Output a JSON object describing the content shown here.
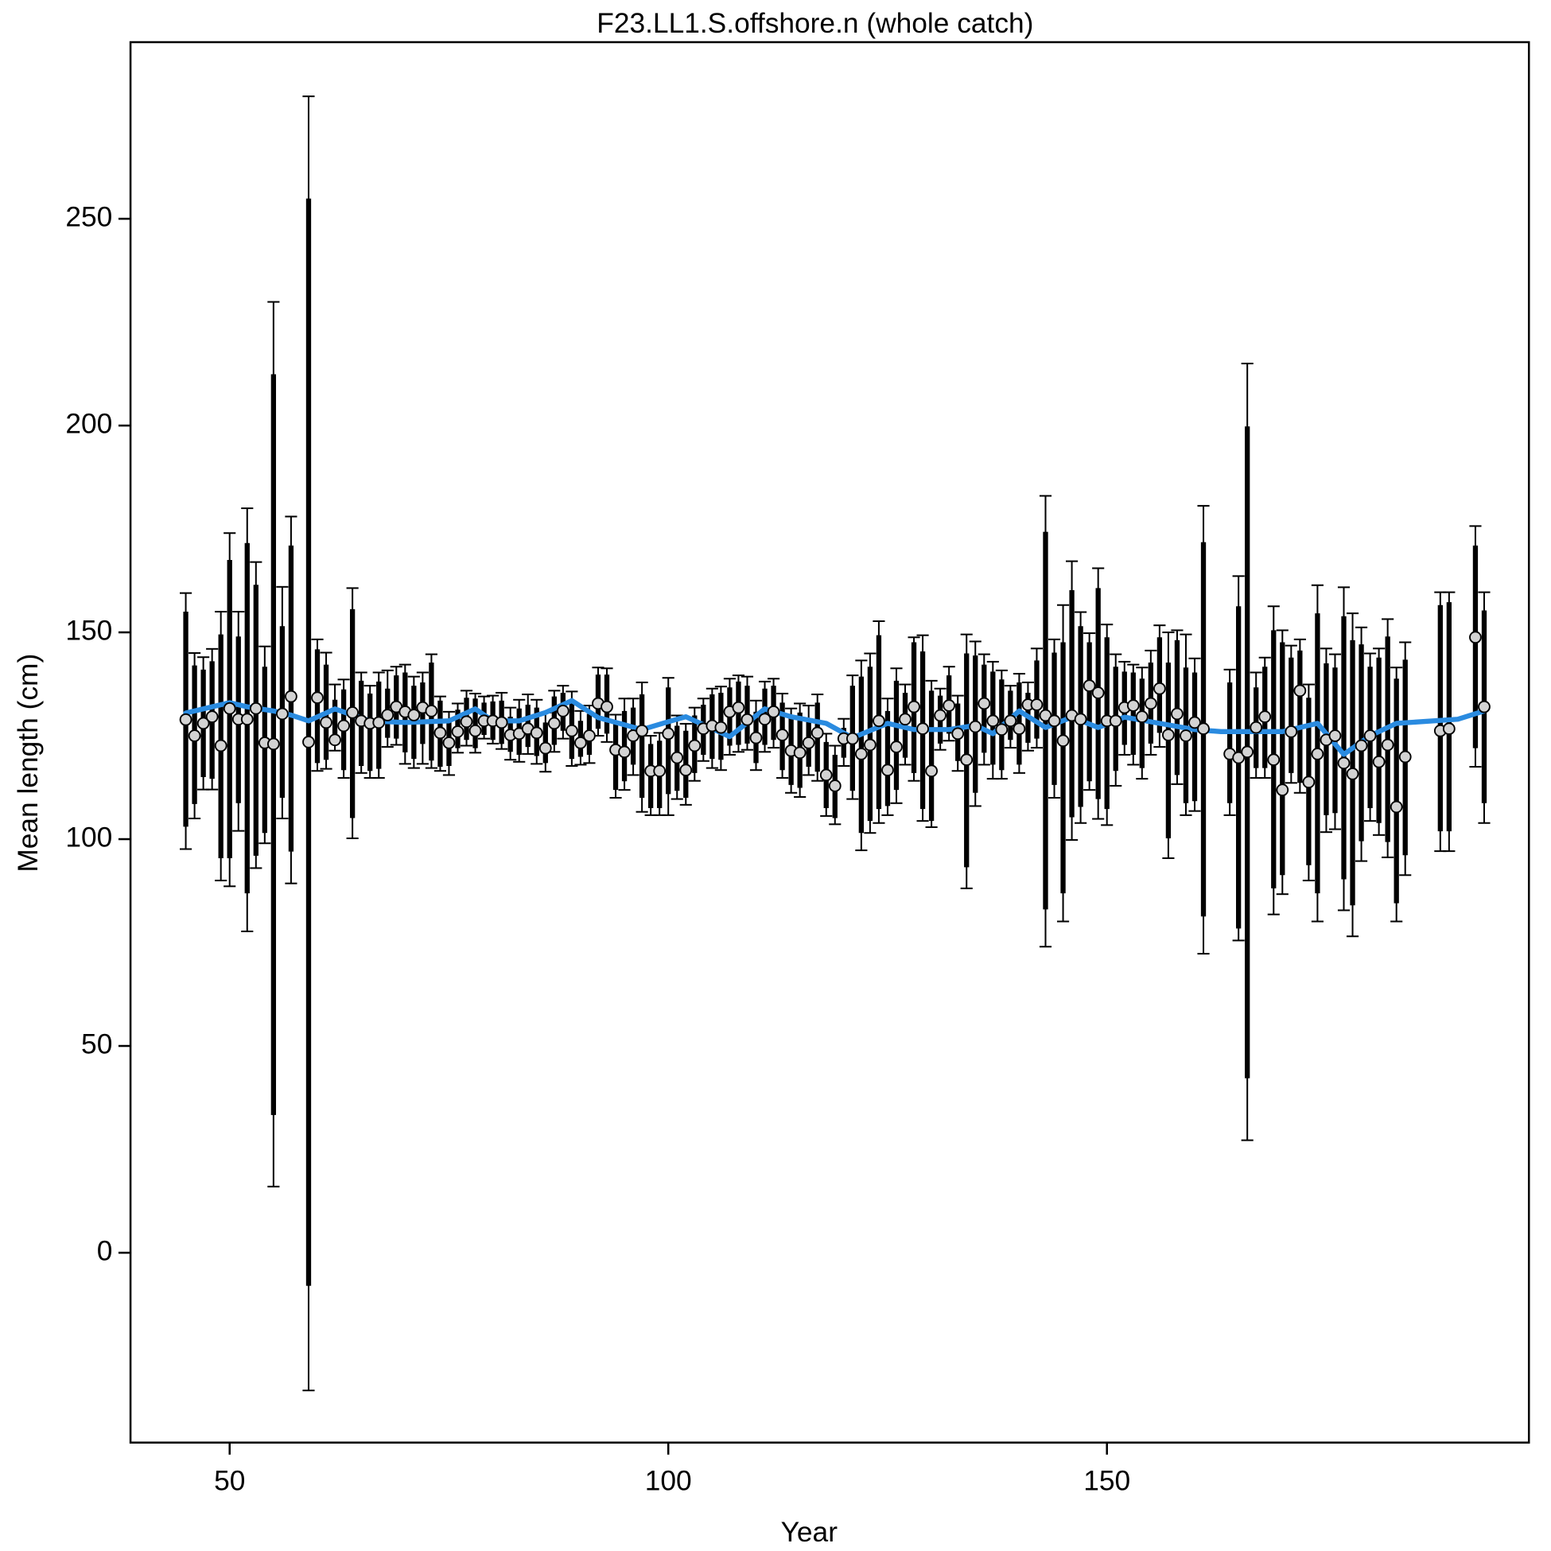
{
  "chart_data": {
    "type": "errorbar",
    "title": "F23.LL1.S.offshore.n (whole catch)",
    "xlabel": "Year",
    "ylabel": "Mean length (cm)",
    "xlim": [
      38.7,
      198.1
    ],
    "ylim": [
      -45.9,
      292.7
    ],
    "xticks": [
      50,
      100,
      150
    ],
    "yticks": [
      0,
      50,
      100,
      150,
      200,
      250
    ],
    "points": {
      "color": "#d3d3d3",
      "bar_color": "#000000",
      "x": [
        45,
        46,
        47,
        48,
        49,
        50,
        51,
        52,
        53,
        54,
        55,
        56,
        57,
        59,
        60,
        61,
        62,
        63,
        64,
        65,
        66,
        67,
        68,
        69,
        70,
        71,
        72,
        73,
        74,
        75,
        76,
        77,
        78,
        79,
        80,
        81,
        82,
        83,
        84,
        85,
        86,
        87,
        88,
        89,
        90,
        91,
        92,
        93,
        94,
        95,
        96,
        97,
        98,
        99,
        100,
        101,
        102,
        103,
        104,
        105,
        106,
        107,
        108,
        109,
        110,
        111,
        112,
        113,
        114,
        115,
        116,
        117,
        118,
        119,
        120,
        121,
        122,
        123,
        124,
        125,
        126,
        127,
        128,
        129,
        130,
        131,
        132,
        133,
        134,
        135,
        136,
        137,
        138,
        139,
        140,
        141,
        142,
        143,
        144,
        145,
        146,
        147,
        148,
        149,
        150,
        151,
        152,
        153,
        154,
        155,
        156,
        157,
        158,
        159,
        160,
        161,
        164,
        165,
        166,
        167,
        168,
        169,
        170,
        171,
        172,
        173,
        174,
        175,
        176,
        177,
        178,
        179,
        180,
        181,
        182,
        183,
        184,
        188,
        189,
        192,
        193
      ],
      "values": [
        128.9,
        125,
        128,
        129.6,
        122.6,
        131.6,
        129,
        129,
        131.6,
        123.3,
        123,
        130.3,
        134.5,
        123.5,
        134.2,
        128.2,
        124,
        127.4,
        130.6,
        128.6,
        128,
        128.2,
        130,
        132,
        130.8,
        130,
        131.8,
        131,
        125.7,
        123.3,
        126,
        128.4,
        126.2,
        128.6,
        128.6,
        128.2,
        125.2,
        125.5,
        126.7,
        125.7,
        122,
        128,
        131,
        126.2,
        123.3,
        125,
        132.8,
        132,
        121.6,
        121.1,
        125,
        126.2,
        116.5,
        116.5,
        125.5,
        119.7,
        116.7,
        122.6,
        126.7,
        127.4,
        127,
        130.8,
        131.8,
        128.9,
        124.5,
        129,
        130.8,
        125.2,
        121.4,
        120.9,
        123.3,
        125.7,
        115.5,
        112.9,
        124.3,
        124.3,
        120.6,
        122.8,
        128.6,
        116.7,
        122.3,
        129,
        132,
        126.7,
        116.5,
        129.9,
        132.3,
        125.5,
        119.2,
        127.2,
        132.8,
        128.6,
        126.5,
        128.6,
        126.7,
        132.5,
        132.5,
        129.9,
        128.6,
        123.8,
        129.9,
        129,
        137.1,
        135.4,
        128.6,
        128.6,
        131.8,
        132.3,
        129.6,
        132.8,
        136.4,
        125.2,
        130.3,
        125,
        128.2,
        126.7,
        120.6,
        119.7,
        121.1,
        127,
        129.6,
        119.2,
        111.9,
        126,
        135.9,
        113.8,
        120.6,
        124,
        125,
        118.4,
        115.8,
        122.6,
        125,
        118.7,
        122.8,
        107.8,
        119.9,
        126.2,
        126.7,
        148.8,
        132
      ],
      "inner_high": [
        155,
        142,
        141,
        143,
        149.5,
        167.5,
        149,
        171.6,
        161.5,
        141.7,
        212.4,
        151.5,
        171,
        254.9,
        145.9,
        142.2,
        133.7,
        136.2,
        155.6,
        138.3,
        135.2,
        138.1,
        136.4,
        139.6,
        140.3,
        137.1,
        137.9,
        142.7,
        133.5,
        128.9,
        131.3,
        134.2,
        134,
        133,
        133.3,
        133.5,
        129.6,
        131.6,
        132.5,
        131.8,
        128.2,
        134.5,
        135.4,
        133.5,
        128.6,
        130.3,
        139.8,
        139.8,
        128.2,
        131,
        131.8,
        135,
        123,
        123.8,
        136.7,
        127.4,
        126.2,
        129.9,
        132.5,
        135,
        135.4,
        136.7,
        138.1,
        137.1,
        130.8,
        136.4,
        137.1,
        133,
        129.4,
        130.6,
        128.9,
        133,
        123.5,
        120.4,
        126.9,
        137.1,
        139.3,
        141.7,
        149.3,
        131,
        138.3,
        135.4,
        147.6,
        145.4,
        135.9,
        134.7,
        139.6,
        132.8,
        144.9,
        144.4,
        142.2,
        140.5,
        138.6,
        135.9,
        137.9,
        135.4,
        143.2,
        174.3,
        145.1,
        147.6,
        160.2,
        151.5,
        147.6,
        160.7,
        148.8,
        141.7,
        140.5,
        140.3,
        138.8,
        142.7,
        148.8,
        142.7,
        148.1,
        141.5,
        140.3,
        171.8,
        137.9,
        156.3,
        199.8,
        136.7,
        141.7,
        150.5,
        147.6,
        143.9,
        145.6,
        134.2,
        154.6,
        142.5,
        141.5,
        153.9,
        148.1,
        147.1,
        141.7,
        143.9,
        149,
        138.8,
        143.4,
        156.6,
        157.3,
        171,
        155.3
      ],
      "inner_low": [
        103,
        108.5,
        115,
        114.6,
        95.4,
        95.4,
        108.7,
        86.9,
        96,
        101.5,
        33.3,
        110,
        97,
        -8,
        118.4,
        119.2,
        122.6,
        116.7,
        105.1,
        117.7,
        116.5,
        117,
        124.5,
        124.3,
        121,
        119.4,
        123,
        119,
        117.5,
        117.7,
        122,
        124,
        122,
        125.2,
        124,
        123,
        121.1,
        120.4,
        122.3,
        120.1,
        118.4,
        122.8,
        126.2,
        119.4,
        119.9,
        120.4,
        126.7,
        125.5,
        111.9,
        114,
        118,
        110,
        107.5,
        107.5,
        110.9,
        111.7,
        110,
        116,
        120.4,
        119.4,
        119.2,
        122.6,
        122.8,
        123.1,
        118.4,
        122.8,
        124,
        116.7,
        113.1,
        112.4,
        117.5,
        116.3,
        107.5,
        105.1,
        119.7,
        111.7,
        101.5,
        104.4,
        107.3,
        108,
        111.9,
        119.7,
        116,
        107.3,
        104.4,
        123.1,
        125.5,
        118.9,
        93.2,
        111.2,
        120.9,
        118,
        116.7,
        124,
        118,
        123.3,
        124.3,
        83,
        113.1,
        86.9,
        105.3,
        107.8,
        114,
        109.7,
        107.3,
        116.5,
        122.8,
        120.4,
        117.2,
        123.1,
        125.7,
        100.2,
        115.5,
        108.7,
        109.2,
        81.3,
        108.7,
        78.4,
        42.2,
        117.2,
        117.2,
        88.1,
        91.3,
        116,
        113.6,
        93.7,
        86.9,
        105.8,
        106.3,
        90.3,
        84,
        99.5,
        107.5,
        103.9,
        99.3,
        84.5,
        96.1,
        101.9,
        101.9,
        122,
        108.7
      ],
      "outer_high": [
        159.5,
        145,
        144,
        146,
        155,
        174,
        155,
        180,
        167,
        146.6,
        229.9,
        161,
        178,
        279.6,
        148.3,
        145.1,
        137.4,
        138.6,
        160.7,
        140.3,
        137.1,
        140.3,
        140.8,
        141.7,
        142.2,
        139.3,
        140.3,
        144.7,
        134.5,
        130.8,
        132.8,
        135.9,
        135.2,
        134.5,
        134.7,
        135.4,
        131.8,
        133.7,
        135,
        133.7,
        130.6,
        135.9,
        137.1,
        135.7,
        131,
        132.3,
        141.5,
        141.3,
        130.1,
        134,
        134,
        137.9,
        125,
        125.7,
        139,
        129.9,
        127.9,
        131.8,
        134,
        136.4,
        136.9,
        138.8,
        139.6,
        139.3,
        133.5,
        138.1,
        138.8,
        135.2,
        131.6,
        132.8,
        132.3,
        135,
        125.5,
        122.6,
        129.1,
        139.6,
        143.2,
        144.9,
        152.7,
        134,
        141.3,
        137.4,
        148.8,
        149.3,
        138.3,
        136.4,
        141.7,
        134.7,
        149.5,
        147.8,
        144.7,
        142.9,
        140.8,
        137.1,
        140,
        137.9,
        146.1,
        183,
        148.3,
        156.6,
        167.2,
        154.9,
        149.8,
        165.5,
        151.9,
        144.7,
        142.9,
        142.2,
        141.5,
        145.6,
        151.7,
        150,
        150.5,
        149.5,
        143.7,
        180.6,
        141,
        163.6,
        215,
        140.3,
        143.9,
        156.3,
        150.5,
        146.8,
        148.3,
        137.4,
        161.4,
        146.1,
        144.7,
        160.9,
        154.6,
        151.2,
        144.9,
        146.1,
        153.2,
        141.5,
        147.6,
        159.7,
        159.7,
        175.7,
        159.7
      ],
      "outer_low": [
        97.6,
        105,
        112,
        112,
        90,
        88.6,
        102,
        77.7,
        93,
        99,
        16,
        105,
        89.3,
        -33.3,
        116.5,
        117,
        121.4,
        114.8,
        100.2,
        116,
        114.8,
        114.8,
        122.3,
        122.8,
        118.2,
        117.2,
        118.2,
        117.2,
        116.5,
        115.5,
        120.9,
        122.6,
        120.9,
        124.3,
        123.1,
        121.8,
        119.2,
        118.7,
        120.6,
        118.2,
        116.3,
        121.1,
        124.3,
        117.7,
        118,
        118.4,
        125,
        123.5,
        110,
        111.9,
        115.5,
        106.6,
        105.8,
        105.8,
        105.8,
        109.7,
        108.3,
        114.1,
        118.9,
        117.2,
        116.7,
        120.4,
        121.1,
        121.6,
        116.7,
        121.1,
        122.1,
        114.8,
        111.2,
        110.2,
        115.5,
        114.1,
        105.6,
        103.6,
        117.7,
        109.7,
        97.3,
        101.5,
        103.9,
        105.8,
        108.7,
        118,
        114.1,
        104.4,
        102.9,
        121.6,
        123.8,
        116.5,
        88.1,
        108,
        118,
        114.6,
        114.6,
        122.1,
        116,
        121.4,
        122.1,
        74,
        110,
        80.1,
        99.8,
        103.9,
        111.9,
        104.9,
        103.4,
        112.9,
        120.4,
        118,
        114.6,
        120.4,
        122.3,
        95.4,
        113.3,
        105.8,
        106.8,
        72.3,
        105.8,
        75.5,
        27.2,
        114.8,
        114.8,
        81.8,
        86.7,
        113.6,
        111.2,
        90,
        80.1,
        101.7,
        102.4,
        82.8,
        76.5,
        94.7,
        104.4,
        101,
        95.6,
        80.1,
        91.3,
        97.1,
        97.1,
        117.5,
        103.9
      ]
    },
    "fit": {
      "color": "#2a8be0",
      "x": [
        45,
        48,
        50,
        52,
        55,
        57,
        59,
        61,
        62,
        64,
        66,
        70,
        75,
        78,
        80,
        83,
        86,
        89,
        92,
        97,
        100,
        102,
        107,
        111,
        114,
        118,
        121,
        125,
        128,
        132,
        135,
        137,
        140,
        143,
        146,
        149,
        152,
        156,
        160,
        163,
        170,
        174,
        177,
        180,
        183,
        190,
        193
      ],
      "values": [
        130.5,
        132,
        133,
        132,
        131,
        130,
        128.6,
        130.5,
        131.5,
        130,
        128.6,
        128.2,
        128.6,
        131.5,
        128.6,
        128.6,
        130.6,
        133.5,
        129.4,
        126.5,
        128.4,
        129.6,
        124.8,
        131.5,
        129.6,
        128,
        124.5,
        128,
        126.5,
        126.5,
        127.5,
        125.5,
        131,
        127,
        129.5,
        127,
        129.5,
        128,
        126.5,
        126,
        126,
        128,
        120.5,
        125,
        128,
        129,
        131
      ]
    }
  }
}
